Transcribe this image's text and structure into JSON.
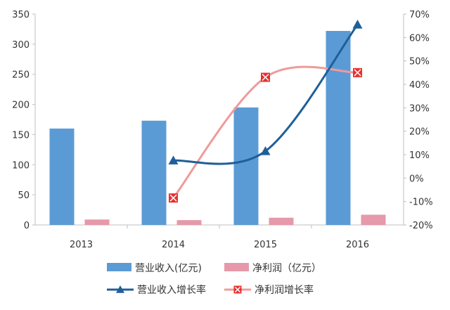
{
  "chart_data": {
    "type": "bar",
    "categories": [
      "2013",
      "2014",
      "2015",
      "2016"
    ],
    "y_left": {
      "min": 0,
      "max": 350,
      "step": 50
    },
    "y_right": {
      "min": -20,
      "max": 70,
      "step": 10,
      "unit": "%"
    },
    "grid": false,
    "legend_position": "bottom",
    "bar_series": [
      {
        "name": "营业收入(亿元)",
        "values": [
          160,
          173,
          195,
          322
        ],
        "color": "#5b9bd5",
        "axis": "left"
      },
      {
        "name": "净利润（亿元）",
        "values": [
          9,
          8,
          12,
          17
        ],
        "color": "#e699aa",
        "axis": "left"
      }
    ],
    "line_series": [
      {
        "name": "营业收入增长率",
        "values": [
          null,
          7.5,
          11.5,
          65.5
        ],
        "color": "#1f5f99",
        "marker": "triangle",
        "axis": "right"
      },
      {
        "name": "净利润增长率",
        "values": [
          null,
          -8.5,
          43,
          45
        ],
        "color": "#f09a9a",
        "marker": "square-x",
        "marker_color": "#e8302e",
        "axis": "right"
      }
    ]
  }
}
